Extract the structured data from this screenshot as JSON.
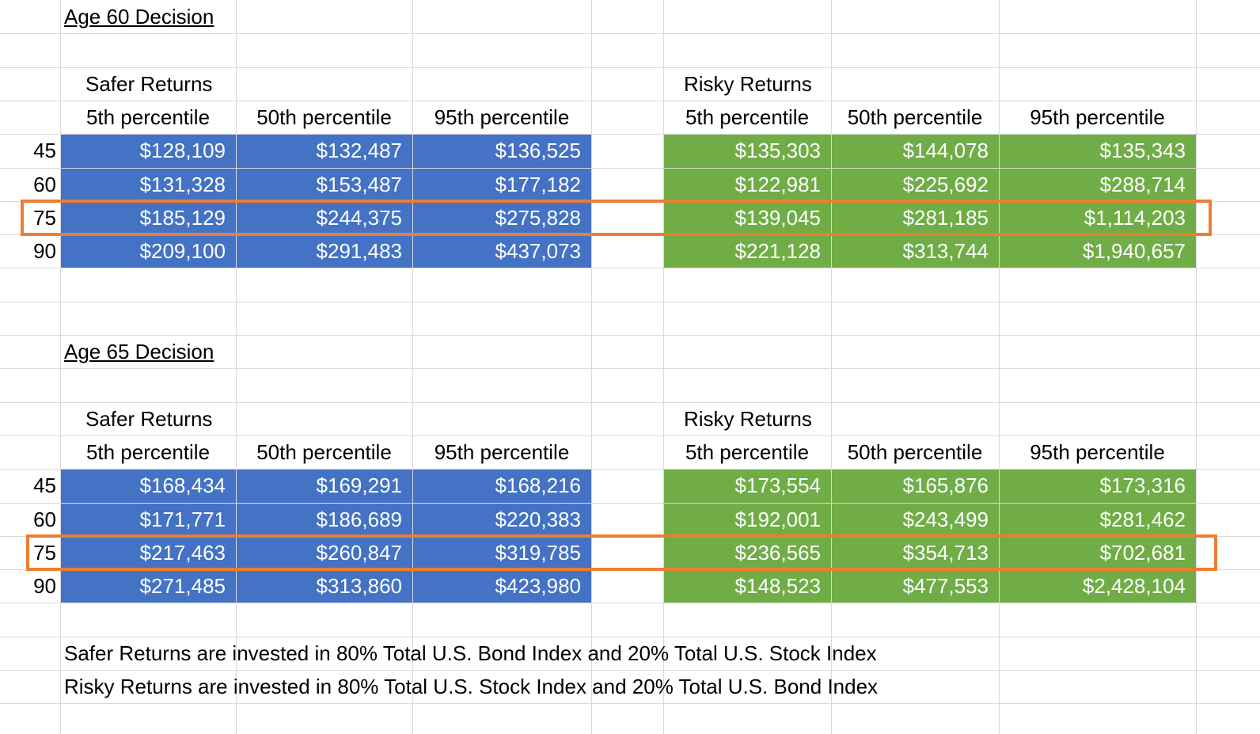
{
  "sections": [
    {
      "title": "Age 60 Decision",
      "safer": {
        "label": "Safer Returns",
        "headers": [
          "5th percentile",
          "50th percentile",
          "95th percentile"
        ],
        "rows": [
          [
            "$128,109",
            "$132,487",
            "$136,525"
          ],
          [
            "$131,328",
            "$153,487",
            "$177,182"
          ],
          [
            "$185,129",
            "$244,375",
            "$275,828"
          ],
          [
            "$209,100",
            "$291,483",
            "$437,073"
          ]
        ]
      },
      "risky": {
        "label": "Risky Returns",
        "headers": [
          "5th percentile",
          "50th percentile",
          "95th percentile"
        ],
        "rows": [
          [
            "$135,303",
            "$144,078",
            "$135,343"
          ],
          [
            "$122,981",
            "$225,692",
            "$288,714"
          ],
          [
            "$139,045",
            "$281,185",
            "$1,114,203"
          ],
          [
            "$221,128",
            "$313,744",
            "$1,940,657"
          ]
        ]
      },
      "ages": [
        "45",
        "60",
        "75",
        "90"
      ],
      "highlighted_age": "75"
    },
    {
      "title": "Age 65 Decision",
      "safer": {
        "label": "Safer Returns",
        "headers": [
          "5th percentile",
          "50th percentile",
          "95th percentile"
        ],
        "rows": [
          [
            "$168,434",
            "$169,291",
            "$168,216"
          ],
          [
            "$171,771",
            "$186,689",
            "$220,383"
          ],
          [
            "$217,463",
            "$260,847",
            "$319,785"
          ],
          [
            "$271,485",
            "$313,860",
            "$423,980"
          ]
        ]
      },
      "risky": {
        "label": "Risky Returns",
        "headers": [
          "5th percentile",
          "50th percentile",
          "95th percentile"
        ],
        "rows": [
          [
            "$173,554",
            "$165,876",
            "$173,316"
          ],
          [
            "$192,001",
            "$243,499",
            "$281,462"
          ],
          [
            "$236,565",
            "$354,713",
            "$702,681"
          ],
          [
            "$148,523",
            "$477,553",
            "$2,428,104"
          ]
        ]
      },
      "ages": [
        "45",
        "60",
        "75",
        "90"
      ],
      "highlighted_age": "75"
    }
  ],
  "notes": [
    "Safer Returns are invested in 80% Total U.S. Bond Index and 20% Total U.S. Stock Index",
    "Risky Returns are invested in 80% Total U.S. Stock Index and 20% Total U.S. Bond Index"
  ],
  "colors": {
    "safer_fill": "#4472c4",
    "risky_fill": "#70ad47",
    "highlight_border": "#ed7d31",
    "gridline": "#d9d9d9"
  }
}
